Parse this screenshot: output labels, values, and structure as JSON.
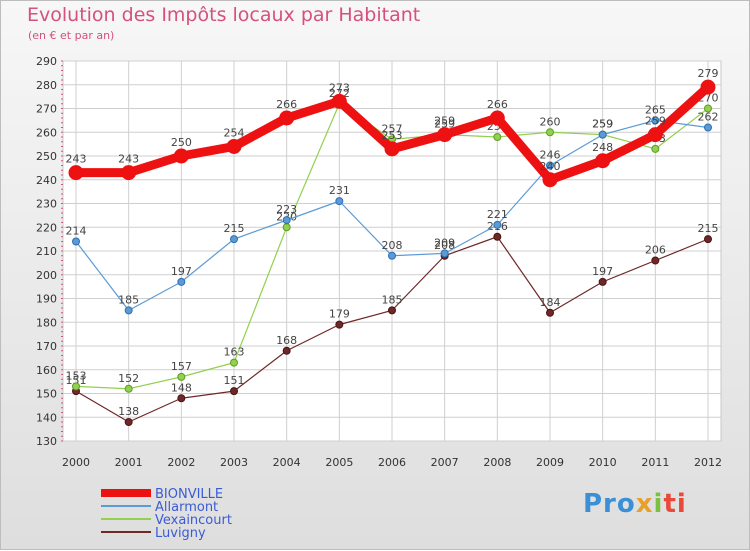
{
  "title": "Evolution des Impôts locaux par Habitant",
  "subtitle": "(en € et par an)",
  "logo": [
    "Pro",
    "x",
    "i",
    "ti"
  ],
  "chart_data": {
    "type": "line",
    "x": [
      "2000",
      "2001",
      "2002",
      "2003",
      "2004",
      "2005",
      "2006",
      "2007",
      "2008",
      "2009",
      "2010",
      "2011",
      "2012"
    ],
    "yticks": [
      130,
      140,
      150,
      160,
      170,
      180,
      190,
      200,
      210,
      220,
      230,
      240,
      250,
      260,
      270,
      280,
      290
    ],
    "ylim": [
      130,
      290
    ],
    "grid": true,
    "legend_position": "bottom-left",
    "series": [
      {
        "name": "BIONVILLE",
        "color": "#ee1111",
        "width": 9,
        "values": [
          243,
          243,
          250,
          254,
          266,
          273,
          253,
          259,
          266,
          240,
          248,
          259,
          279
        ],
        "labels": [
          "243",
          "243",
          "250",
          "254",
          "266",
          "273",
          "253",
          "259",
          "266",
          "240",
          "248",
          "259",
          "279"
        ]
      },
      {
        "name": "Allarmont",
        "color": "#5b9bd5",
        "width": 1.2,
        "values": [
          214,
          185,
          197,
          215,
          223,
          231,
          208,
          209,
          221,
          246,
          259,
          265,
          262
        ],
        "labels": [
          "214",
          "185",
          "197",
          "215",
          "223",
          "231",
          "208",
          "209",
          "221",
          "246",
          "259",
          "265",
          "262"
        ]
      },
      {
        "name": "Vexaincourt",
        "color": "#92d050",
        "width": 1.2,
        "values": [
          153,
          152,
          157,
          163,
          220,
          272,
          257,
          259,
          258,
          260,
          259,
          253,
          270
        ],
        "labels": [
          "153",
          "152",
          "157",
          "163",
          "220",
          "272",
          "257",
          "259",
          "258",
          "260",
          "259",
          "253",
          "270"
        ]
      },
      {
        "name": "Luvigny",
        "color": "#6e2828",
        "width": 1.2,
        "values": [
          151,
          138,
          148,
          151,
          168,
          179,
          185,
          208,
          216,
          184,
          197,
          206,
          215
        ],
        "labels": [
          "151",
          "138",
          "148",
          "151",
          "168",
          "179",
          "185",
          "208",
          "216",
          "184",
          "197",
          "206",
          "215"
        ]
      }
    ]
  }
}
